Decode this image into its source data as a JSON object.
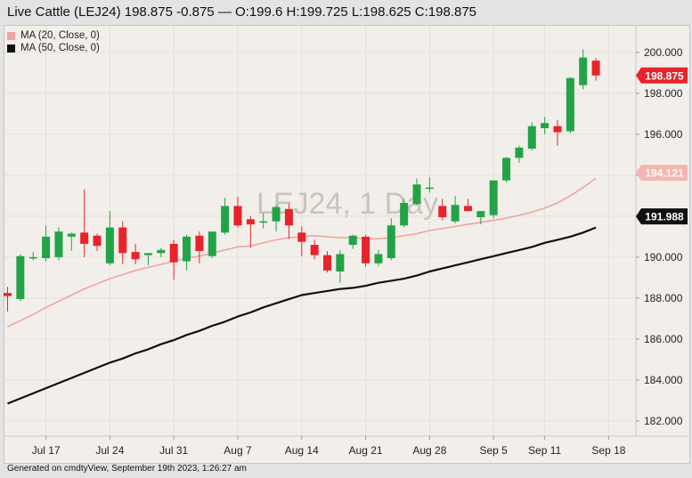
{
  "header": {
    "title": "Live Cattle (LEJ24) 198.875 -0.875 — O:199.6 H:199.725 L:198.625 C:198.875"
  },
  "legend": [
    {
      "label": "MA (20, Close, 0)",
      "color": "#f0a5a0"
    },
    {
      "label": "MA (50, Close, 0)",
      "color": "#111111"
    }
  ],
  "watermark": "LEJ24, 1 Day",
  "footer": "Generated on cmdtyView, September 19th 2023, 1:26:27 am",
  "chart_data": {
    "type": "candlestick",
    "ylim": [
      181.3,
      201.3
    ],
    "y_ticks": [
      182,
      184,
      186,
      188,
      190,
      192,
      194,
      196,
      198,
      200
    ],
    "y_tick_labels": [
      "182.000",
      "184.000",
      "186.000",
      "188.000",
      "190.000",
      "192.000",
      "194.000",
      "196.000",
      "198.000",
      "200.000"
    ],
    "x_labels": [
      {
        "bar": 3,
        "label": "Jul 17"
      },
      {
        "bar": 8,
        "label": "Jul 24"
      },
      {
        "bar": 13,
        "label": "Jul 31"
      },
      {
        "bar": 18,
        "label": "Aug 7"
      },
      {
        "bar": 23,
        "label": "Aug 14"
      },
      {
        "bar": 28,
        "label": "Aug 21"
      },
      {
        "bar": 33,
        "label": "Aug 28"
      },
      {
        "bar": 38,
        "label": "Sep 5"
      },
      {
        "bar": 42,
        "label": "Sep 11"
      },
      {
        "bar": 47,
        "label": "Sep 18"
      }
    ],
    "candles": [
      {
        "o": 188.25,
        "h": 188.55,
        "l": 187.35,
        "c": 188.1
      },
      {
        "o": 187.95,
        "h": 190.15,
        "l": 187.85,
        "c": 190.05
      },
      {
        "o": 190.0,
        "h": 190.25,
        "l": 189.85,
        "c": 190.0
      },
      {
        "o": 189.95,
        "h": 191.55,
        "l": 189.8,
        "c": 191.0
      },
      {
        "o": 190.0,
        "h": 191.45,
        "l": 189.85,
        "c": 191.25
      },
      {
        "o": 191.0,
        "h": 191.2,
        "l": 190.3,
        "c": 191.15
      },
      {
        "o": 191.2,
        "h": 193.3,
        "l": 190.0,
        "c": 190.65
      },
      {
        "o": 191.05,
        "h": 191.15,
        "l": 190.3,
        "c": 190.55
      },
      {
        "o": 189.7,
        "h": 192.25,
        "l": 189.6,
        "c": 191.45
      },
      {
        "o": 191.45,
        "h": 191.75,
        "l": 189.65,
        "c": 190.2
      },
      {
        "o": 190.25,
        "h": 190.65,
        "l": 189.65,
        "c": 189.9
      },
      {
        "o": 190.1,
        "h": 190.2,
        "l": 189.6,
        "c": 190.2
      },
      {
        "o": 190.2,
        "h": 190.45,
        "l": 190.0,
        "c": 190.35
      },
      {
        "o": 190.65,
        "h": 190.85,
        "l": 188.9,
        "c": 189.75
      },
      {
        "o": 189.8,
        "h": 191.1,
        "l": 189.35,
        "c": 191.0
      },
      {
        "o": 191.05,
        "h": 191.25,
        "l": 189.7,
        "c": 190.3
      },
      {
        "o": 190.05,
        "h": 191.25,
        "l": 189.95,
        "c": 191.25
      },
      {
        "o": 191.2,
        "h": 192.9,
        "l": 191.1,
        "c": 192.5
      },
      {
        "o": 192.5,
        "h": 192.95,
        "l": 191.45,
        "c": 191.55
      },
      {
        "o": 191.85,
        "h": 192.0,
        "l": 190.45,
        "c": 191.6
      },
      {
        "o": 191.75,
        "h": 192.15,
        "l": 191.4,
        "c": 191.75
      },
      {
        "o": 191.75,
        "h": 192.55,
        "l": 191.25,
        "c": 192.45
      },
      {
        "o": 192.35,
        "h": 192.6,
        "l": 190.9,
        "c": 191.55
      },
      {
        "o": 191.2,
        "h": 191.5,
        "l": 190.05,
        "c": 190.75
      },
      {
        "o": 190.6,
        "h": 190.85,
        "l": 189.9,
        "c": 190.1
      },
      {
        "o": 190.1,
        "h": 190.3,
        "l": 189.25,
        "c": 189.35
      },
      {
        "o": 189.3,
        "h": 190.35,
        "l": 188.75,
        "c": 190.15
      },
      {
        "o": 190.6,
        "h": 191.1,
        "l": 190.4,
        "c": 191.05
      },
      {
        "o": 191.0,
        "h": 191.1,
        "l": 189.55,
        "c": 189.7
      },
      {
        "o": 189.7,
        "h": 190.35,
        "l": 189.55,
        "c": 190.15
      },
      {
        "o": 189.95,
        "h": 191.9,
        "l": 189.85,
        "c": 191.55
      },
      {
        "o": 191.55,
        "h": 192.85,
        "l": 191.45,
        "c": 192.65
      },
      {
        "o": 192.6,
        "h": 193.85,
        "l": 192.55,
        "c": 193.55
      },
      {
        "o": 193.35,
        "h": 193.9,
        "l": 193.15,
        "c": 193.4
      },
      {
        "o": 192.5,
        "h": 192.85,
        "l": 191.8,
        "c": 191.95
      },
      {
        "o": 191.75,
        "h": 193.0,
        "l": 191.65,
        "c": 192.55
      },
      {
        "o": 192.5,
        "h": 192.85,
        "l": 192.25,
        "c": 192.25
      },
      {
        "o": 191.95,
        "h": 192.25,
        "l": 191.6,
        "c": 192.25
      },
      {
        "o": 192.05,
        "h": 193.65,
        "l": 191.9,
        "c": 193.75
      },
      {
        "o": 193.75,
        "h": 194.9,
        "l": 193.65,
        "c": 194.85
      },
      {
        "o": 194.85,
        "h": 195.45,
        "l": 194.6,
        "c": 195.35
      },
      {
        "o": 195.3,
        "h": 196.6,
        "l": 195.2,
        "c": 196.4
      },
      {
        "o": 196.3,
        "h": 196.85,
        "l": 196.0,
        "c": 196.55
      },
      {
        "o": 196.4,
        "h": 196.7,
        "l": 195.45,
        "c": 196.1
      },
      {
        "o": 196.15,
        "h": 198.8,
        "l": 196.05,
        "c": 198.75
      },
      {
        "o": 198.4,
        "h": 200.15,
        "l": 198.2,
        "c": 199.75
      },
      {
        "o": 199.6,
        "h": 199.725,
        "l": 198.625,
        "c": 198.875
      }
    ],
    "series": [
      {
        "name": "MA (20, Close, 0)",
        "color": "#f0a5a0",
        "values": [
          186.6,
          186.9,
          187.2,
          187.55,
          187.85,
          188.15,
          188.45,
          188.7,
          188.95,
          189.15,
          189.35,
          189.5,
          189.65,
          189.8,
          189.95,
          190.05,
          190.2,
          190.35,
          190.5,
          190.55,
          190.7,
          190.85,
          190.95,
          191.0,
          191.05,
          191.0,
          190.95,
          190.95,
          190.9,
          190.9,
          190.95,
          191.05,
          191.15,
          191.3,
          191.4,
          191.5,
          191.6,
          191.7,
          191.8,
          191.9,
          192.05,
          192.2,
          192.4,
          192.65,
          193.0,
          193.4,
          193.85
        ]
      },
      {
        "name": "MA (50, Close, 0)",
        "color": "#111111",
        "values": [
          182.85,
          183.1,
          183.35,
          183.6,
          183.85,
          184.1,
          184.35,
          184.6,
          184.85,
          185.05,
          185.3,
          185.5,
          185.75,
          185.95,
          186.2,
          186.4,
          186.65,
          186.85,
          187.1,
          187.3,
          187.55,
          187.75,
          187.95,
          188.15,
          188.25,
          188.35,
          188.45,
          188.5,
          188.6,
          188.75,
          188.85,
          188.95,
          189.1,
          189.3,
          189.45,
          189.6,
          189.75,
          189.9,
          190.05,
          190.2,
          190.35,
          190.5,
          190.7,
          190.85,
          191.0,
          191.2,
          191.45
        ]
      }
    ],
    "last_price_labels": [
      {
        "value": 198.875,
        "label": "198.875",
        "bg": "#e8232b",
        "fg": "#ffffff"
      },
      {
        "value": 194.121,
        "label": "194.121",
        "bg": "#f5b5b0",
        "fg": "#ffffff"
      },
      {
        "value": 191.988,
        "label": "191.988",
        "bg": "#111111",
        "fg": "#ffffff"
      }
    ],
    "up_color": "#23a347",
    "down_color": "#e8232b"
  }
}
